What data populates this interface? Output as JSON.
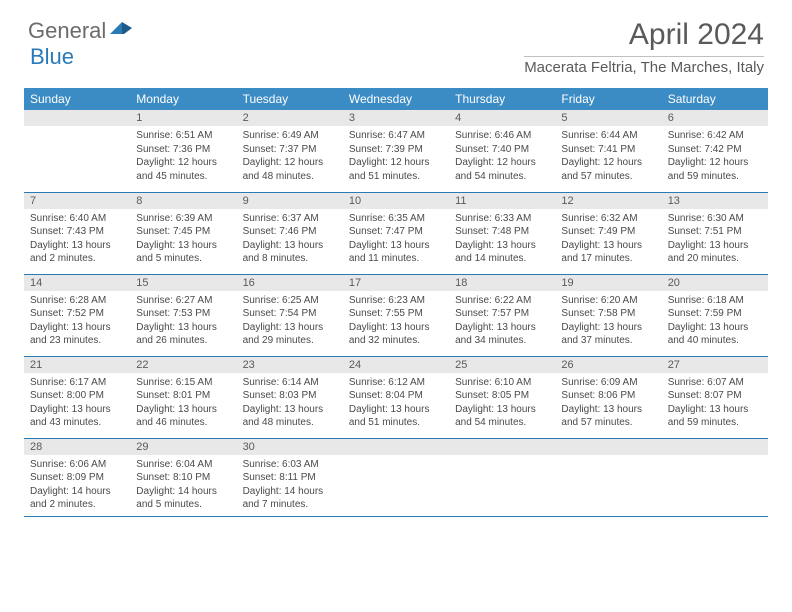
{
  "logo": {
    "general": "General",
    "blue": "Blue"
  },
  "title": "April 2024",
  "location": "Macerata Feltria, The Marches, Italy",
  "colors": {
    "header_bg": "#3b8bc4",
    "header_text": "#ffffff",
    "daynum_bg": "#e8e8e8",
    "row_border": "#2a7ab8",
    "body_text": "#4a4a4a",
    "title_text": "#5a5a5a"
  },
  "weekdays": [
    "Sunday",
    "Monday",
    "Tuesday",
    "Wednesday",
    "Thursday",
    "Friday",
    "Saturday"
  ],
  "weeks": [
    [
      null,
      {
        "n": "1",
        "sr": "6:51 AM",
        "ss": "7:36 PM",
        "dl": "12 hours and 45 minutes."
      },
      {
        "n": "2",
        "sr": "6:49 AM",
        "ss": "7:37 PM",
        "dl": "12 hours and 48 minutes."
      },
      {
        "n": "3",
        "sr": "6:47 AM",
        "ss": "7:39 PM",
        "dl": "12 hours and 51 minutes."
      },
      {
        "n": "4",
        "sr": "6:46 AM",
        "ss": "7:40 PM",
        "dl": "12 hours and 54 minutes."
      },
      {
        "n": "5",
        "sr": "6:44 AM",
        "ss": "7:41 PM",
        "dl": "12 hours and 57 minutes."
      },
      {
        "n": "6",
        "sr": "6:42 AM",
        "ss": "7:42 PM",
        "dl": "12 hours and 59 minutes."
      }
    ],
    [
      {
        "n": "7",
        "sr": "6:40 AM",
        "ss": "7:43 PM",
        "dl": "13 hours and 2 minutes."
      },
      {
        "n": "8",
        "sr": "6:39 AM",
        "ss": "7:45 PM",
        "dl": "13 hours and 5 minutes."
      },
      {
        "n": "9",
        "sr": "6:37 AM",
        "ss": "7:46 PM",
        "dl": "13 hours and 8 minutes."
      },
      {
        "n": "10",
        "sr": "6:35 AM",
        "ss": "7:47 PM",
        "dl": "13 hours and 11 minutes."
      },
      {
        "n": "11",
        "sr": "6:33 AM",
        "ss": "7:48 PM",
        "dl": "13 hours and 14 minutes."
      },
      {
        "n": "12",
        "sr": "6:32 AM",
        "ss": "7:49 PM",
        "dl": "13 hours and 17 minutes."
      },
      {
        "n": "13",
        "sr": "6:30 AM",
        "ss": "7:51 PM",
        "dl": "13 hours and 20 minutes."
      }
    ],
    [
      {
        "n": "14",
        "sr": "6:28 AM",
        "ss": "7:52 PM",
        "dl": "13 hours and 23 minutes."
      },
      {
        "n": "15",
        "sr": "6:27 AM",
        "ss": "7:53 PM",
        "dl": "13 hours and 26 minutes."
      },
      {
        "n": "16",
        "sr": "6:25 AM",
        "ss": "7:54 PM",
        "dl": "13 hours and 29 minutes."
      },
      {
        "n": "17",
        "sr": "6:23 AM",
        "ss": "7:55 PM",
        "dl": "13 hours and 32 minutes."
      },
      {
        "n": "18",
        "sr": "6:22 AM",
        "ss": "7:57 PM",
        "dl": "13 hours and 34 minutes."
      },
      {
        "n": "19",
        "sr": "6:20 AM",
        "ss": "7:58 PM",
        "dl": "13 hours and 37 minutes."
      },
      {
        "n": "20",
        "sr": "6:18 AM",
        "ss": "7:59 PM",
        "dl": "13 hours and 40 minutes."
      }
    ],
    [
      {
        "n": "21",
        "sr": "6:17 AM",
        "ss": "8:00 PM",
        "dl": "13 hours and 43 minutes."
      },
      {
        "n": "22",
        "sr": "6:15 AM",
        "ss": "8:01 PM",
        "dl": "13 hours and 46 minutes."
      },
      {
        "n": "23",
        "sr": "6:14 AM",
        "ss": "8:03 PM",
        "dl": "13 hours and 48 minutes."
      },
      {
        "n": "24",
        "sr": "6:12 AM",
        "ss": "8:04 PM",
        "dl": "13 hours and 51 minutes."
      },
      {
        "n": "25",
        "sr": "6:10 AM",
        "ss": "8:05 PM",
        "dl": "13 hours and 54 minutes."
      },
      {
        "n": "26",
        "sr": "6:09 AM",
        "ss": "8:06 PM",
        "dl": "13 hours and 57 minutes."
      },
      {
        "n": "27",
        "sr": "6:07 AM",
        "ss": "8:07 PM",
        "dl": "13 hours and 59 minutes."
      }
    ],
    [
      {
        "n": "28",
        "sr": "6:06 AM",
        "ss": "8:09 PM",
        "dl": "14 hours and 2 minutes."
      },
      {
        "n": "29",
        "sr": "6:04 AM",
        "ss": "8:10 PM",
        "dl": "14 hours and 5 minutes."
      },
      {
        "n": "30",
        "sr": "6:03 AM",
        "ss": "8:11 PM",
        "dl": "14 hours and 7 minutes."
      },
      null,
      null,
      null,
      null
    ]
  ],
  "labels": {
    "sunrise": "Sunrise: ",
    "sunset": "Sunset: ",
    "daylight": "Daylight: "
  }
}
